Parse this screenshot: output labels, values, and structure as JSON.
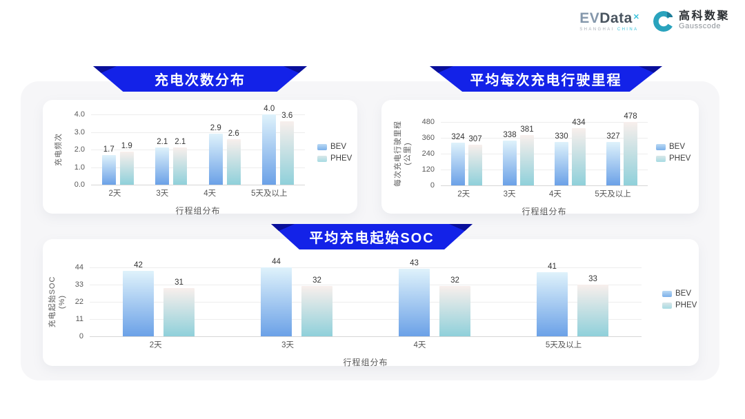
{
  "brand": {
    "evdata": {
      "part1": "EV",
      "part2": "Data",
      "sup": "✕",
      "sub1": "SHANGHAI",
      "sub2": "CHINA"
    },
    "gausscode": {
      "cn": "高科数聚",
      "en": "Gausscode"
    }
  },
  "colors": {
    "banner_blue": "#1322e8",
    "bev_top": "#dff2fb",
    "bev_bottom": "#6ba1e7",
    "phev_top": "#f8efec",
    "phev_bottom": "#8fd0da",
    "legend_bev": "#7cb0e9",
    "legend_phev": "#a7dbe3"
  },
  "chart_data": [
    {
      "type": "bar",
      "title": "充电次数分布",
      "ylabel_lines": [
        "充电频次"
      ],
      "xlabel": "行程组分布",
      "categories": [
        "2天",
        "3天",
        "4天",
        "5天及以上"
      ],
      "yticks": [
        "4.0",
        "3.0",
        "2.0",
        "1.0",
        "0.0"
      ],
      "ylim": [
        0,
        4
      ],
      "grid": true,
      "legend_position": "right",
      "series": [
        {
          "name": "BEV",
          "values": [
            1.7,
            2.1,
            2.9,
            4.0
          ],
          "labels": [
            "1.7",
            "2.1",
            "2.9",
            "4.0"
          ]
        },
        {
          "name": "PHEV",
          "values": [
            1.9,
            2.1,
            2.6,
            3.6
          ],
          "labels": [
            "1.9",
            "2.1",
            "2.6",
            "3.6"
          ]
        }
      ]
    },
    {
      "type": "bar",
      "title": "平均每次充电行驶里程",
      "ylabel_lines": [
        "每次充电行驶里程",
        "(公里)"
      ],
      "xlabel": "行程组分布",
      "categories": [
        "2天",
        "3天",
        "4天",
        "5天及以上"
      ],
      "yticks": [
        "480",
        "360",
        "240",
        "120",
        "0"
      ],
      "ylim": [
        0,
        480
      ],
      "grid": true,
      "legend_position": "right",
      "series": [
        {
          "name": "BEV",
          "values": [
            324,
            338,
            330,
            327
          ],
          "labels": [
            "324",
            "338",
            "330",
            "327"
          ]
        },
        {
          "name": "PHEV",
          "values": [
            307,
            381,
            434,
            478
          ],
          "labels": [
            "307",
            "381",
            "434",
            "478"
          ]
        }
      ]
    },
    {
      "type": "bar",
      "title": "平均充电起始SOC",
      "ylabel_lines": [
        "充电起始SOC",
        "(%)"
      ],
      "xlabel": "行程组分布",
      "categories": [
        "2天",
        "3天",
        "4天",
        "5天及以上"
      ],
      "yticks": [
        "44",
        "33",
        "22",
        "11",
        "0"
      ],
      "ylim": [
        0,
        44
      ],
      "grid": true,
      "legend_position": "right",
      "series": [
        {
          "name": "BEV",
          "values": [
            42,
            44,
            43,
            41
          ],
          "labels": [
            "42",
            "44",
            "43",
            "41"
          ]
        },
        {
          "name": "PHEV",
          "values": [
            31,
            32,
            32,
            33
          ],
          "labels": [
            "31",
            "32",
            "32",
            "33"
          ]
        }
      ]
    }
  ]
}
